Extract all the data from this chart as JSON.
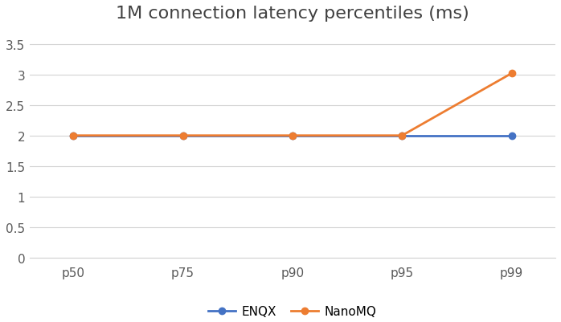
{
  "title": "1M connection latency percentiles (ms)",
  "categories": [
    "p50",
    "p75",
    "p90",
    "p95",
    "p99"
  ],
  "series": [
    {
      "name": "ENQX",
      "values": [
        2.0,
        2.0,
        2.0,
        2.0,
        2.0
      ],
      "color": "#4472C4",
      "marker": "o",
      "linewidth": 2.0,
      "markersize": 6
    },
    {
      "name": "NanoMQ",
      "values": [
        2.0,
        2.0,
        2.0,
        2.0,
        3.02
      ],
      "color": "#ED7D31",
      "marker": "o",
      "linewidth": 2.0,
      "markersize": 6
    }
  ],
  "ylim": [
    0,
    3.75
  ],
  "yticks": [
    0,
    0.5,
    1.0,
    1.5,
    2.0,
    2.5,
    3.0,
    3.5
  ],
  "ytick_labels": [
    "0",
    "0.5",
    "1",
    "1.5",
    "2",
    "2.5",
    "3",
    "3.5"
  ],
  "grid_color": "#D3D3D3",
  "background_color": "#FFFFFF",
  "title_fontsize": 16,
  "tick_fontsize": 11,
  "legend_fontsize": 11
}
